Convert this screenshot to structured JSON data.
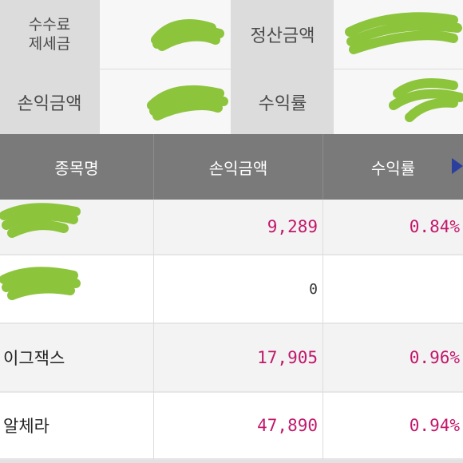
{
  "summary": {
    "fee_tax_line1": "수수료",
    "fee_tax_line2": "제세금",
    "settlement_label": "정산금액",
    "pnl_label": "손익금액",
    "return_label": "수익률"
  },
  "table": {
    "headers": [
      "종목명",
      "손익금액",
      "수익률"
    ],
    "rows": [
      {
        "name": "",
        "amount": "9,289",
        "rate": "0.84%"
      },
      {
        "name": "",
        "amount": "0",
        "rate": ""
      },
      {
        "name": "이그잭스",
        "amount": "17,905",
        "rate": "0.96%"
      },
      {
        "name": "알체라",
        "amount": "47,890",
        "rate": "0.94%"
      }
    ]
  },
  "colors": {
    "positive": "#c2186b",
    "header_bg": "#7a7a7a",
    "redaction": "#8cc43c"
  },
  "icons": {
    "scroll": "triangle-right-icon"
  }
}
